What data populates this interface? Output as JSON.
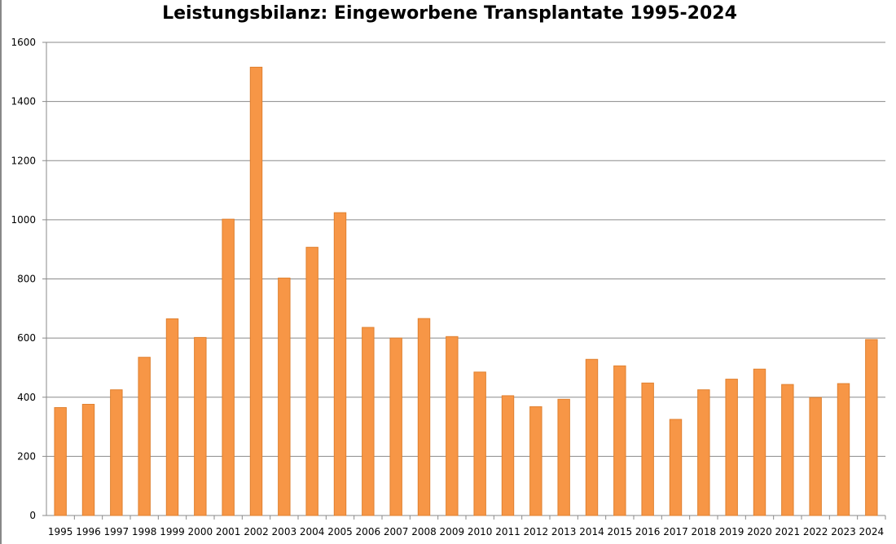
{
  "chart_data": {
    "type": "bar",
    "title": "Leistungsbilanz: Eingeworbene Transplantate 1995-2024",
    "xlabel": "",
    "ylabel": "",
    "ylim": [
      0,
      1600
    ],
    "yticks": [
      0,
      200,
      400,
      600,
      800,
      1000,
      1200,
      1400,
      1600
    ],
    "grid": true,
    "bar_color": "#F79646",
    "bar_edge_color": "#E0802F",
    "categories": [
      "1995",
      "1996",
      "1997",
      "1998",
      "1999",
      "2000",
      "2001",
      "2002",
      "2003",
      "2004",
      "2005",
      "2006",
      "2007",
      "2008",
      "2009",
      "2010",
      "2011",
      "2012",
      "2013",
      "2014",
      "2015",
      "2016",
      "2017",
      "2018",
      "2019",
      "2020",
      "2021",
      "2022",
      "2023",
      "2024"
    ],
    "values": [
      365,
      376,
      425,
      535,
      665,
      602,
      1002,
      1516,
      803,
      907,
      1024,
      636,
      600,
      666,
      605,
      485,
      405,
      368,
      393,
      528,
      506,
      448,
      325,
      425,
      461,
      495,
      443,
      399,
      446,
      595
    ]
  }
}
